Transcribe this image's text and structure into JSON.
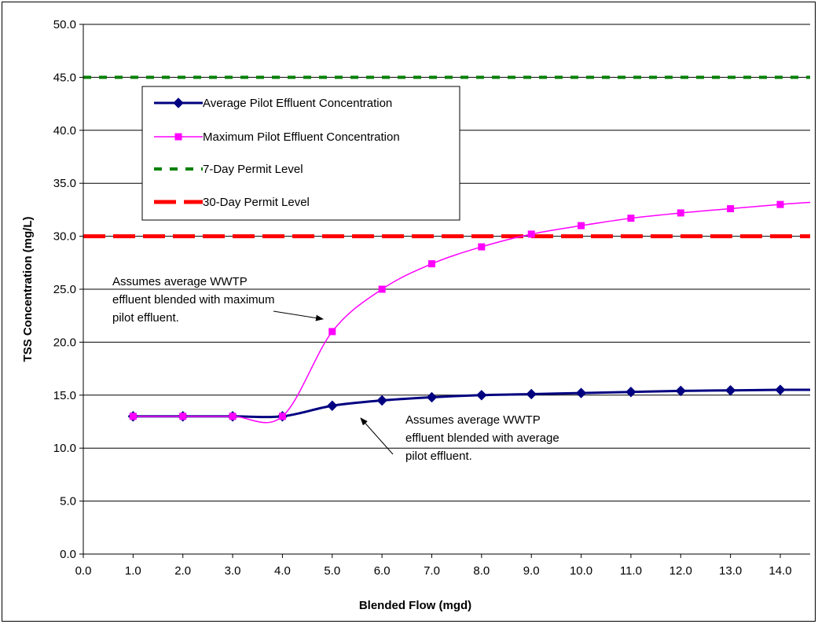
{
  "chart_data": {
    "type": "line",
    "title": "",
    "xlabel": "Blended Flow (mgd)",
    "ylabel": "TSS Concentration (mg/L)",
    "xlim": [
      0,
      14.6
    ],
    "ylim": [
      0,
      50
    ],
    "xticks": [
      "0.0",
      "1.0",
      "2.0",
      "3.0",
      "4.0",
      "5.0",
      "6.0",
      "7.0",
      "8.0",
      "9.0",
      "10.0",
      "11.0",
      "12.0",
      "13.0",
      "14.0"
    ],
    "yticks": [
      "0.0",
      "5.0",
      "10.0",
      "15.0",
      "20.0",
      "25.0",
      "30.0",
      "35.0",
      "40.0",
      "45.0",
      "50.0"
    ],
    "grid": "horizontal",
    "legend_position": "upper-left",
    "series": [
      {
        "name": "Average Pilot Effluent Concentration",
        "color": "#000080",
        "marker": "diamond",
        "x": [
          1,
          2,
          3,
          4,
          5,
          6,
          7,
          8,
          9,
          10,
          11,
          12,
          13,
          14,
          14.6
        ],
        "y": [
          13.0,
          13.0,
          13.0,
          13.0,
          14.0,
          14.5,
          14.8,
          15.0,
          15.1,
          15.2,
          15.3,
          15.4,
          15.45,
          15.5,
          15.5
        ],
        "marker_count": 14
      },
      {
        "name": "Maximum Pilot Effluent Concentration",
        "color": "#FF00FF",
        "marker": "square",
        "x": [
          1,
          2,
          3,
          4,
          5,
          6,
          7,
          8,
          9,
          10,
          11,
          12,
          13,
          14,
          14.6
        ],
        "y": [
          13.0,
          13.0,
          13.0,
          13.0,
          21.0,
          25.0,
          27.4,
          29.0,
          30.2,
          31.0,
          31.7,
          32.2,
          32.6,
          33.0,
          33.2
        ],
        "marker_count": 14
      },
      {
        "name": "7-Day Permit Level",
        "color": "#008000",
        "style": "dashed",
        "x": [
          0,
          14.6
        ],
        "y": [
          45,
          45
        ]
      },
      {
        "name": "30-Day Permit Level",
        "color": "#FF0000",
        "style": "dashed",
        "x": [
          0,
          14.6
        ],
        "y": [
          30,
          30
        ]
      }
    ],
    "annotations": [
      {
        "lines": [
          "Assumes average WWTP",
          "effluent blended with maximum",
          "pilot effluent."
        ],
        "target_x": 4.7,
        "target_y": 22.5
      },
      {
        "lines": [
          "Assumes average WWTP",
          "effluent  blended with average",
          "pilot effluent."
        ],
        "target_x": 5.9,
        "target_y": 14.6
      }
    ]
  }
}
